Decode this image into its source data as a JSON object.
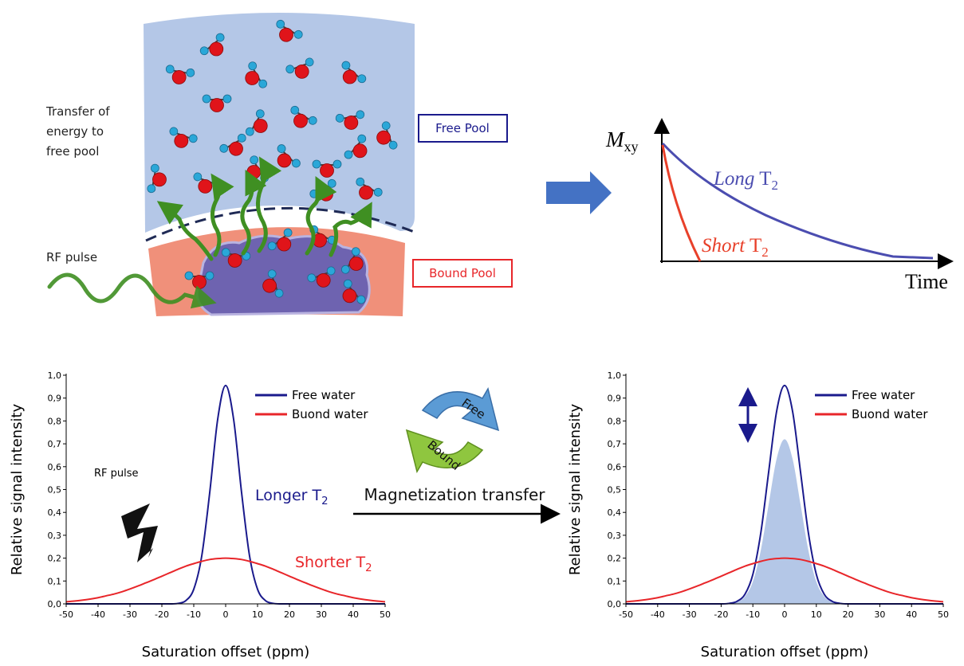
{
  "diagram": {
    "transfer_text": [
      "Transfer of",
      "energy to",
      "free pool"
    ],
    "rf_pulse": "RF pulse",
    "free_pool": "Free Pool",
    "bound_pool": "Bound Pool",
    "decay": {
      "y_axis": {
        "main": "M",
        "sub": "xy"
      },
      "long": {
        "italic": "Long",
        "text": " T",
        "sub": "2"
      },
      "short": {
        "italic": "Short",
        "text": " T",
        "sub": "2"
      },
      "x_axis": "Time"
    },
    "cycle": {
      "free": "Free",
      "bound": "Bound"
    },
    "transfer_label": "Magnetization transfer"
  },
  "chart_data": [
    {
      "type": "line",
      "x_label": "Saturation offset (ppm)",
      "y_label": "Relative signal intensity",
      "x": [
        -50,
        -47.5,
        -45,
        -42.5,
        -40,
        -37.5,
        -35,
        -32.5,
        -30,
        -27.5,
        -25,
        -22.5,
        -20,
        -17.5,
        -15,
        -12.5,
        -10,
        -7.5,
        -5,
        -2.5,
        0,
        2.5,
        5,
        7.5,
        10,
        12.5,
        15,
        17.5,
        20,
        22.5,
        25,
        27.5,
        30,
        32.5,
        35,
        37.5,
        40,
        42.5,
        45,
        47.5,
        50
      ],
      "series": [
        {
          "name": "Free water",
          "color": "#1a1a8c",
          "values": [
            0,
            0,
            0,
            0,
            0,
            0,
            0,
            0,
            0,
            0,
            0,
            0,
            0,
            0,
            0.002,
            0.014,
            0.064,
            0.209,
            0.486,
            0.807,
            0.955,
            0.807,
            0.486,
            0.209,
            0.064,
            0.014,
            0.002,
            0,
            0,
            0,
            0,
            0,
            0,
            0,
            0,
            0,
            0,
            0,
            0,
            0,
            0
          ]
        },
        {
          "name": "Buond water",
          "color": "#e8262a",
          "values": [
            0.009,
            0.012,
            0.016,
            0.021,
            0.027,
            0.035,
            0.043,
            0.053,
            0.065,
            0.078,
            0.092,
            0.106,
            0.121,
            0.136,
            0.151,
            0.165,
            0.176,
            0.186,
            0.194,
            0.198,
            0.2,
            0.198,
            0.194,
            0.186,
            0.176,
            0.165,
            0.151,
            0.136,
            0.121,
            0.106,
            0.092,
            0.078,
            0.065,
            0.053,
            0.043,
            0.035,
            0.027,
            0.021,
            0.016,
            0.012,
            0.009
          ]
        }
      ],
      "xlim": [
        -50,
        50
      ],
      "ylim": [
        0,
        1
      ],
      "xticks": [
        -50,
        -40,
        -30,
        -20,
        -10,
        0,
        10,
        20,
        30,
        40,
        50
      ],
      "yticks": [
        {
          "value": 0,
          "label": "0,0"
        },
        {
          "value": 0.1,
          "label": "0,1"
        },
        {
          "value": 0.2,
          "label": "0,2"
        },
        {
          "value": 0.3,
          "label": "0,3"
        },
        {
          "value": 0.4,
          "label": "0,4"
        },
        {
          "value": 0.5,
          "label": "0,5"
        },
        {
          "value": 0.6,
          "label": "0,6"
        },
        {
          "value": 0.7,
          "label": "0,7"
        },
        {
          "value": 0.8,
          "label": "0,8"
        },
        {
          "value": 0.9,
          "label": "0,9"
        },
        {
          "value": 1,
          "label": "1,0"
        }
      ],
      "legend": "upper right",
      "annotations": [
        {
          "text": "Longer T",
          "sub": "2",
          "color": "#1a1a8c"
        },
        {
          "text": "Shorter T",
          "sub": "2",
          "color": "#e8262a"
        },
        {
          "text": "RF pulse",
          "color": "#000000"
        }
      ]
    },
    {
      "type": "line",
      "x_label": "Saturation offset (ppm)",
      "y_label": "Relative signal intensity",
      "x": [
        -50,
        -47.5,
        -45,
        -42.5,
        -40,
        -37.5,
        -35,
        -32.5,
        -30,
        -27.5,
        -25,
        -22.5,
        -20,
        -17.5,
        -15,
        -12.5,
        -10,
        -7.5,
        -5,
        -2.5,
        0,
        2.5,
        5,
        7.5,
        10,
        12.5,
        15,
        17.5,
        20,
        22.5,
        25,
        27.5,
        30,
        32.5,
        35,
        37.5,
        40,
        42.5,
        45,
        47.5,
        50
      ],
      "series": [
        {
          "color": "#b4c7e7",
          "fill": true,
          "values": [
            0,
            0,
            0,
            0,
            0,
            0,
            0,
            0,
            0,
            0,
            0,
            0,
            0,
            0.002,
            0.008,
            0.032,
            0.097,
            0.234,
            0.437,
            0.635,
            0.72,
            0.635,
            0.437,
            0.234,
            0.097,
            0.032,
            0.008,
            0.002,
            0,
            0,
            0,
            0,
            0,
            0,
            0,
            0,
            0,
            0,
            0,
            0,
            0
          ]
        },
        {
          "name": "Free water",
          "color": "#1a1a8c",
          "values": [
            0,
            0,
            0,
            0,
            0,
            0,
            0,
            0,
            0,
            0,
            0,
            0,
            0,
            0.002,
            0.011,
            0.042,
            0.129,
            0.31,
            0.579,
            0.843,
            0.955,
            0.843,
            0.579,
            0.31,
            0.129,
            0.042,
            0.011,
            0.002,
            0,
            0,
            0,
            0,
            0,
            0,
            0,
            0,
            0,
            0,
            0,
            0,
            0
          ]
        },
        {
          "name": "Buond water",
          "color": "#e8262a",
          "values": [
            0.009,
            0.012,
            0.016,
            0.021,
            0.027,
            0.035,
            0.043,
            0.053,
            0.065,
            0.078,
            0.092,
            0.106,
            0.121,
            0.136,
            0.151,
            0.165,
            0.176,
            0.186,
            0.194,
            0.198,
            0.2,
            0.198,
            0.194,
            0.186,
            0.176,
            0.165,
            0.151,
            0.136,
            0.121,
            0.106,
            0.092,
            0.078,
            0.065,
            0.053,
            0.043,
            0.035,
            0.027,
            0.021,
            0.016,
            0.012,
            0.009
          ]
        }
      ],
      "xlim": [
        -50,
        50
      ],
      "ylim": [
        0,
        1
      ],
      "xticks": [
        -50,
        -40,
        -30,
        -20,
        -10,
        0,
        10,
        20,
        30,
        40,
        50
      ],
      "yticks": [
        {
          "value": 0,
          "label": "0,0"
        },
        {
          "value": 0.1,
          "label": "0,1"
        },
        {
          "value": 0.2,
          "label": "0,2"
        },
        {
          "value": 0.3,
          "label": "0,3"
        },
        {
          "value": 0.4,
          "label": "0,4"
        },
        {
          "value": 0.5,
          "label": "0,5"
        },
        {
          "value": 0.6,
          "label": "0,6"
        },
        {
          "value": 0.7,
          "label": "0,7"
        },
        {
          "value": 0.8,
          "label": "0,8"
        },
        {
          "value": 0.9,
          "label": "0,9"
        },
        {
          "value": 1,
          "label": "1,0"
        }
      ],
      "legend": "upper right"
    }
  ]
}
